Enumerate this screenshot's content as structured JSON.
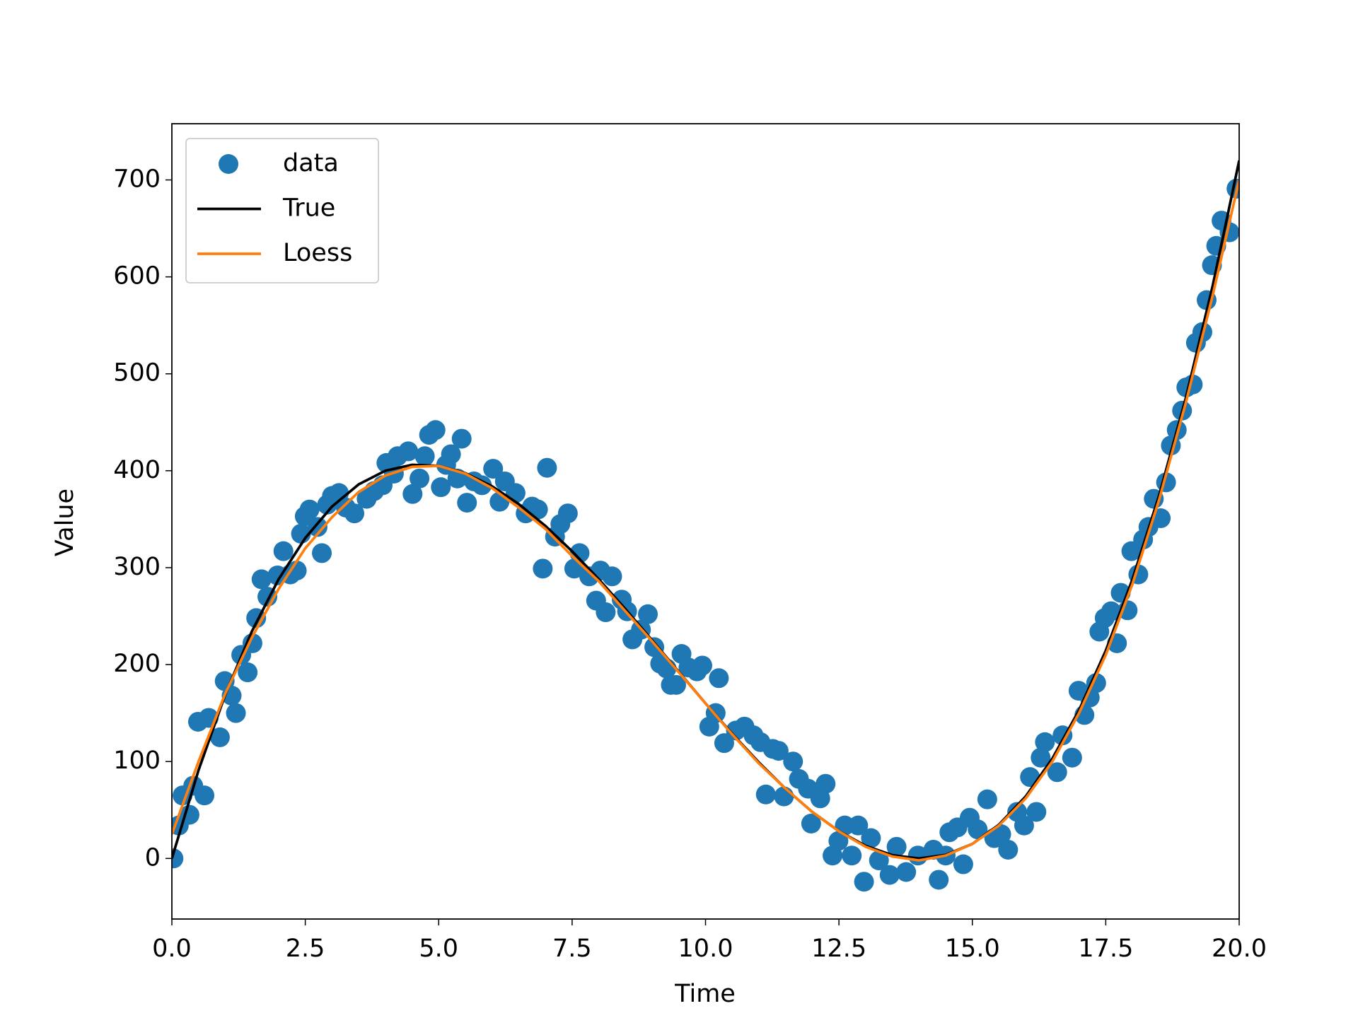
{
  "chart_data": {
    "type": "scatter",
    "xlabel": "Time",
    "ylabel": "Value",
    "xlim": [
      0,
      20
    ],
    "ylim": [
      -62.5,
      758
    ],
    "xticks": [
      {
        "value": 0,
        "label": "0.0"
      },
      2.5,
      {
        "value": 5,
        "label": "5.0"
      },
      7.5,
      {
        "value": 10,
        "label": "10.0"
      },
      12.5,
      {
        "value": 15,
        "label": "15.0"
      },
      17.5,
      {
        "value": 20,
        "label": "20.0"
      }
    ],
    "yticks": [
      0,
      100,
      200,
      300,
      400,
      500,
      600,
      700
    ],
    "legend": "upper left",
    "series": [
      {
        "name": "data",
        "style": "markers",
        "color": "#1f77b4",
        "x": [
          0.03,
          0.13,
          0.2,
          0.33,
          0.4,
          0.49,
          0.61,
          0.69,
          0.9,
          0.99,
          1.12,
          1.2,
          1.3,
          1.42,
          1.51,
          1.58,
          1.68,
          1.79,
          1.98,
          2.09,
          2.22,
          2.34,
          2.42,
          2.49,
          2.58,
          2.73,
          2.81,
          2.91,
          3.0,
          3.13,
          3.26,
          3.42,
          3.65,
          3.79,
          3.95,
          4.02,
          4.16,
          4.23,
          4.43,
          4.51,
          4.64,
          4.74,
          4.82,
          4.94,
          5.04,
          5.14,
          5.23,
          5.35,
          5.43,
          5.53,
          5.66,
          5.81,
          6.02,
          6.14,
          6.24,
          6.44,
          6.63,
          6.75,
          6.86,
          6.95,
          7.03,
          7.18,
          7.28,
          7.42,
          7.54,
          7.64,
          7.82,
          7.95,
          8.03,
          8.13,
          8.25,
          8.43,
          8.53,
          8.63,
          8.79,
          8.92,
          9.04,
          9.15,
          9.27,
          9.35,
          9.45,
          9.55,
          9.68,
          9.84,
          9.94,
          10.07,
          10.19,
          10.25,
          10.35,
          10.57,
          10.73,
          10.9,
          11.03,
          11.13,
          11.26,
          11.37,
          11.47,
          11.64,
          11.75,
          11.92,
          11.98,
          12.15,
          12.25,
          12.38,
          12.49,
          12.61,
          12.74,
          12.86,
          12.97,
          13.1,
          13.25,
          13.45,
          13.58,
          13.76,
          13.98,
          14.27,
          14.37,
          14.5,
          14.57,
          14.72,
          14.83,
          14.95,
          15.1,
          15.28,
          15.41,
          15.54,
          15.67,
          15.84,
          15.97,
          16.08,
          16.2,
          16.28,
          16.36,
          16.59,
          16.69,
          16.87,
          16.99,
          17.1,
          17.2,
          17.32,
          17.38,
          17.48,
          17.6,
          17.71,
          17.78,
          17.91,
          17.98,
          18.11,
          18.2,
          18.3,
          18.4,
          18.53,
          18.63,
          18.72,
          18.83,
          18.93,
          19.01,
          19.13,
          19.19,
          19.31,
          19.39,
          19.49,
          19.57,
          19.67,
          19.82,
          19.95
        ],
        "values": [
          0,
          34,
          65,
          45,
          75,
          141,
          65,
          145,
          125,
          183,
          168,
          150,
          210,
          192,
          222,
          248,
          288,
          270,
          292,
          317,
          293,
          297,
          335,
          353,
          360,
          342,
          315,
          365,
          374,
          377,
          362,
          356,
          371,
          379,
          385,
          408,
          397,
          415,
          420,
          376,
          392,
          415,
          437,
          442,
          383,
          406,
          417,
          392,
          433,
          367,
          389,
          385,
          402,
          368,
          389,
          377,
          356,
          363,
          360,
          299,
          403,
          332,
          345,
          356,
          299,
          315,
          291,
          266,
          297,
          254,
          291,
          267,
          255,
          226,
          236,
          252,
          218,
          201,
          196,
          179,
          179,
          211,
          197,
          193,
          199,
          136,
          150,
          186,
          119,
          132,
          136,
          127,
          120,
          66,
          113,
          111,
          64,
          100,
          82,
          72,
          36,
          62,
          77,
          3,
          18,
          34,
          3,
          34,
          -24,
          21,
          -2,
          -17,
          12,
          -14,
          3,
          9,
          -22,
          3,
          27,
          32,
          -6,
          42,
          30,
          61,
          21,
          25,
          9,
          48,
          34,
          84,
          48,
          104,
          120,
          89,
          127,
          104,
          173,
          148,
          166,
          181,
          234,
          248,
          255,
          222,
          274,
          256,
          317,
          293,
          329,
          342,
          371,
          351,
          388,
          426,
          442,
          462,
          486,
          489,
          532,
          543,
          576,
          612,
          632,
          658,
          646,
          691
        ]
      },
      {
        "name": "True",
        "style": "line",
        "color": "#000000",
        "x": [
          0,
          0.5,
          1,
          1.5,
          2,
          2.5,
          3,
          3.5,
          4,
          4.5,
          5,
          5.5,
          6,
          6.5,
          7,
          7.5,
          8,
          8.5,
          9,
          9.5,
          10,
          10.5,
          11,
          11.5,
          12,
          12.5,
          13,
          13.5,
          14,
          14.5,
          15,
          15.5,
          16,
          16.5,
          17,
          17.5,
          18,
          18.5,
          19,
          19.5,
          20
        ],
        "values": [
          0,
          91.1,
          169,
          234.4,
          288,
          330.6,
          363,
          385.9,
          400,
          406.1,
          405,
          397.4,
          384,
          365.6,
          343,
          316.9,
          288,
          257.1,
          225,
          192.4,
          160,
          128.6,
          99,
          71.9,
          48,
          28.1,
          13,
          3.4,
          0,
          3.6,
          15,
          34.9,
          64,
          103.1,
          153,
          214.4,
          288,
          374.6,
          475,
          589.9,
          720
        ]
      },
      {
        "name": "Loess",
        "style": "line",
        "color": "#ff7f0e",
        "x": [
          0,
          0.5,
          1,
          1.5,
          2,
          2.5,
          3,
          3.5,
          4,
          4.5,
          5,
          5.5,
          6,
          6.5,
          7,
          7.5,
          8,
          8.5,
          9,
          9.5,
          10,
          10.5,
          11,
          11.5,
          12,
          12.5,
          13,
          13.5,
          14,
          14.5,
          15,
          15.5,
          16,
          16.5,
          17,
          17.5,
          18,
          18.5,
          19,
          19.5,
          20
        ],
        "values": [
          25,
          100,
          170,
          228,
          278,
          320,
          352,
          378,
          395,
          404,
          405,
          397,
          382,
          362,
          340,
          312,
          286,
          255,
          224,
          192,
          160,
          128,
          98,
          72,
          48,
          28,
          12,
          2,
          -2,
          3,
          15,
          34,
          62,
          100,
          150,
          210,
          283,
          370,
          470,
          580,
          700
        ]
      }
    ]
  }
}
